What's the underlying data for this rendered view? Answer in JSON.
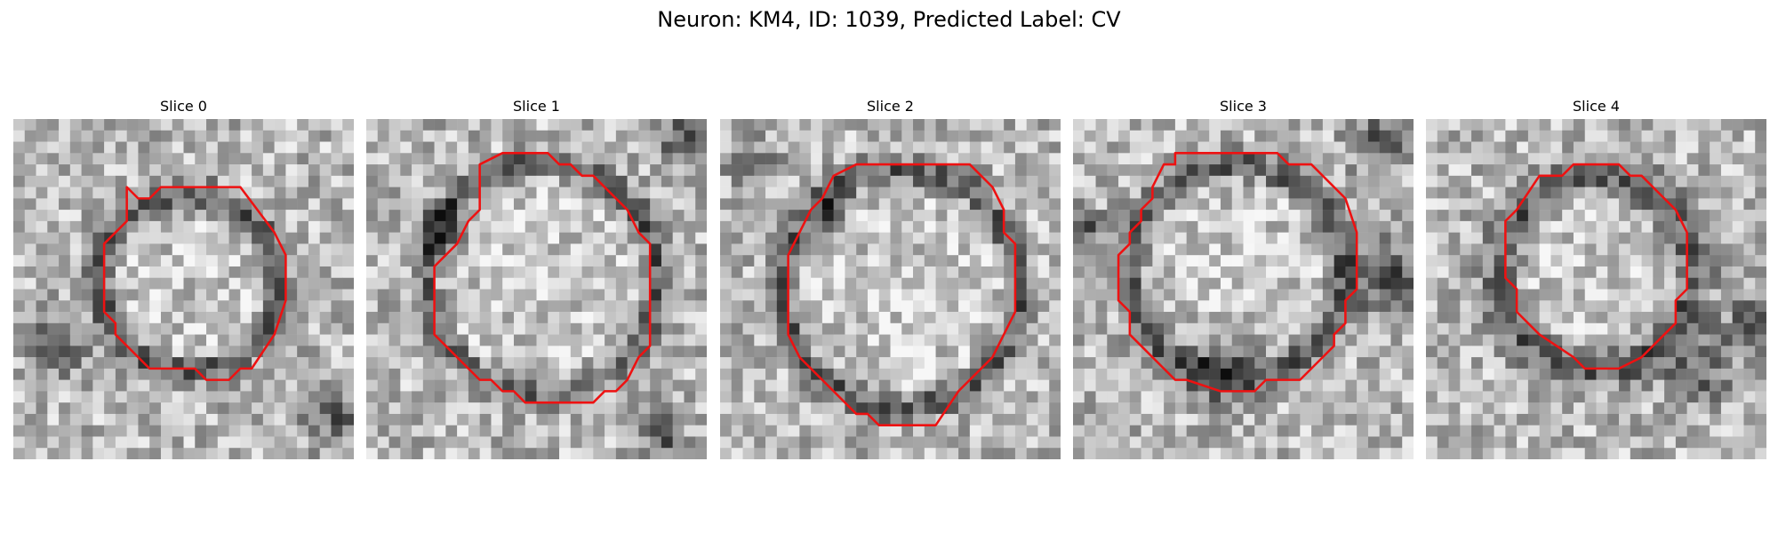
{
  "figure": {
    "title": "Neuron: KM4, ID: 1039, Predicted Label: CV",
    "contour_color": "#ee1111"
  },
  "panels": [
    {
      "title": "Slice 0"
    },
    {
      "title": "Slice 1"
    },
    {
      "title": "Slice 2"
    },
    {
      "title": "Slice 3"
    },
    {
      "title": "Slice 4"
    }
  ]
}
